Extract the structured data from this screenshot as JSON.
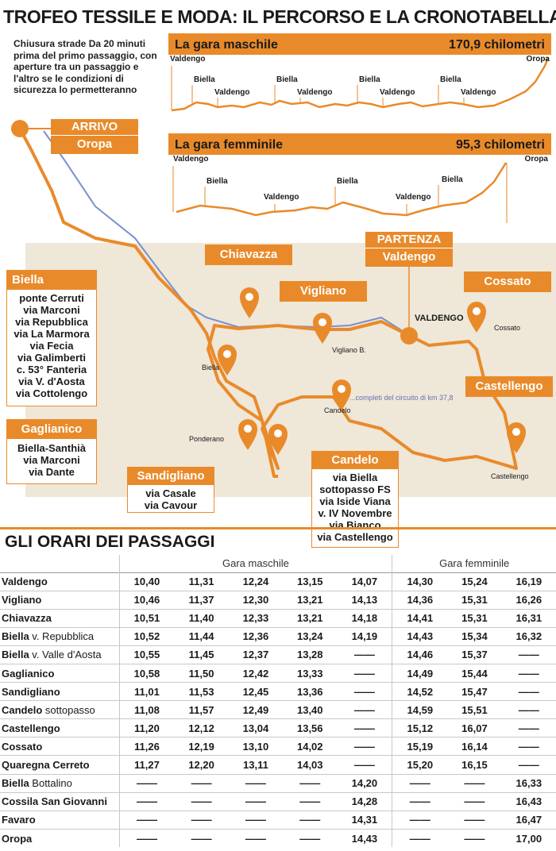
{
  "title": "TROFEO TESSILE E MODA: IL PERCORSO E LA CRONOTABELLA",
  "road_note": "Chiusura strade Da 20 minuti prima del primo passaggio, con aperture tra un passaggio e l'altro se le condizioni di sicurezza lo permetteranno",
  "male_profile": {
    "title": "La gara maschile",
    "distance": "170,9 chilometri",
    "labels": [
      "Valdengo",
      "Oropa",
      "Biella",
      "Valdengo",
      "Biella",
      "Valdengo",
      "Biella",
      "Valdengo",
      "Biella",
      "Valdengo"
    ]
  },
  "female_profile": {
    "title": "La gara femminile",
    "distance": "95,3 chilometri",
    "labels": [
      "Valdengo",
      "Oropa",
      "Biella",
      "Valdengo",
      "Biella",
      "Valdengo",
      "Biella"
    ]
  },
  "arrival": {
    "label": "ARRIVO",
    "place": "Oropa"
  },
  "start": {
    "label": "PARTENZA",
    "place": "Valdengo"
  },
  "places": {
    "biella": {
      "name": "Biella",
      "streets": [
        "ponte Cerruti",
        "via Marconi",
        "via Repubblica",
        "via La Marmora",
        "via Fecia",
        "via Galimberti",
        "c. 53° Fanteria",
        "via V. d'Aosta",
        "via Cottolengo"
      ]
    },
    "gaglianico": {
      "name": "Gaglianico",
      "streets": [
        "Biella-Santhià",
        "via Marconi",
        "via Dante"
      ]
    },
    "sandigliano": {
      "name": "Sandigliano",
      "streets": [
        "via Casale",
        "via Cavour"
      ]
    },
    "candelo": {
      "name": "Candelo",
      "streets": [
        "via Biella",
        "sottopasso FS",
        "via Iside Viana",
        "v. IV Novembre",
        "via Bianco",
        "via Castellengo"
      ]
    },
    "chiavazza": {
      "name": "Chiavazza"
    },
    "vigliano": {
      "name": "Vigliano"
    },
    "cossato": {
      "name": "Cossato"
    },
    "castellengo": {
      "name": "Castellengo"
    }
  },
  "map_labels": {
    "valdengo": "VALDENGO",
    "circuit": "...completi del circuito di km 37,8",
    "biella": "Biella",
    "ponderano": "Ponderano",
    "candelo": "Candelo",
    "cossato": "Cossato",
    "castellengo": "Castellengo",
    "vigliano": "Vigliano B."
  },
  "schedule": {
    "heading": "GLI ORARI DEI PASSAGGI",
    "group_male": "Gara maschile",
    "group_female": "Gara femminile",
    "rows": [
      {
        "name": "Valdengo",
        "sub": "",
        "times": [
          "10,40",
          "11,31",
          "12,24",
          "13,15",
          "14,07",
          "14,30",
          "15,24",
          "16,19"
        ]
      },
      {
        "name": "Vigliano",
        "sub": "",
        "times": [
          "10,46",
          "11,37",
          "12,30",
          "13,21",
          "14,13",
          "14,36",
          "15,31",
          "16,26"
        ]
      },
      {
        "name": "Chiavazza",
        "sub": "",
        "times": [
          "10,51",
          "11,40",
          "12,33",
          "13,21",
          "14,18",
          "14,41",
          "15,31",
          "16,31"
        ]
      },
      {
        "name": "Biella",
        "sub": " v. Repubblica",
        "times": [
          "10,52",
          "11,44",
          "12,36",
          "13,24",
          "14,19",
          "14,43",
          "15,34",
          "16,32"
        ]
      },
      {
        "name": "Biella",
        "sub": " v. Valle d'Aosta",
        "times": [
          "10,55",
          "11,45",
          "12,37",
          "13,28",
          "——",
          "14,46",
          "15,37",
          "——"
        ]
      },
      {
        "name": "Gaglianico",
        "sub": "",
        "times": [
          "10,58",
          "11,50",
          "12,42",
          "13,33",
          "——",
          "14,49",
          "15,44",
          "——"
        ]
      },
      {
        "name": "Sandigliano",
        "sub": "",
        "times": [
          "11,01",
          "11,53",
          "12,45",
          "13,36",
          "——",
          "14,52",
          "15,47",
          "——"
        ]
      },
      {
        "name": "Candelo",
        "sub": " sottopasso",
        "times": [
          "11,08",
          "11,57",
          "12,49",
          "13,40",
          "——",
          "14,59",
          "15,51",
          "——"
        ]
      },
      {
        "name": "Castellengo",
        "sub": "",
        "times": [
          "11,20",
          "12,12",
          "13,04",
          "13,56",
          "——",
          "15,12",
          "16,07",
          "——"
        ]
      },
      {
        "name": "Cossato",
        "sub": "",
        "times": [
          "11,26",
          "12,19",
          "13,10",
          "14,02",
          "——",
          "15,19",
          "16,14",
          "——"
        ]
      },
      {
        "name": "Quaregna Cerreto",
        "sub": "",
        "times": [
          "11,27",
          "12,20",
          "13,11",
          "14,03",
          "——",
          "15,20",
          "16,15",
          "——"
        ]
      },
      {
        "name": "Biella",
        "sub": " Bottalino",
        "times": [
          "——",
          "——",
          "——",
          "——",
          "14,20",
          "——",
          "——",
          "16,33"
        ]
      },
      {
        "name": "Cossila San Giovanni",
        "sub": "",
        "times": [
          "——",
          "——",
          "——",
          "——",
          "14,28",
          "——",
          "——",
          "16,43"
        ]
      },
      {
        "name": "Favaro",
        "sub": "",
        "times": [
          "——",
          "——",
          "——",
          "——",
          "14,31",
          "——",
          "——",
          "16,47"
        ]
      },
      {
        "name": "Oropa",
        "sub": "",
        "times": [
          "——",
          "——",
          "——",
          "——",
          "14,43",
          "——",
          "——",
          "17,00"
        ]
      }
    ]
  },
  "colors": {
    "accent": "#e98a2a",
    "map_bg": "#efe7d8",
    "route_blue": "#7b8fd0"
  }
}
